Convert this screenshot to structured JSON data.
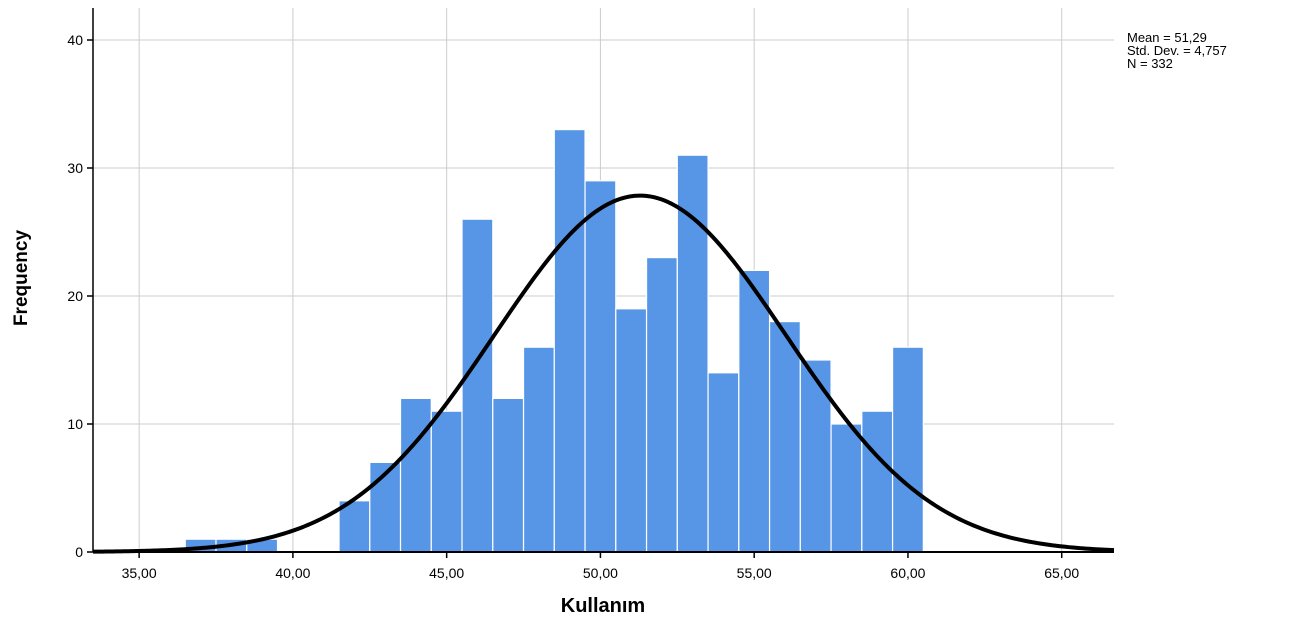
{
  "chart_data": {
    "type": "bar",
    "title": "",
    "xlabel": "Kullanım",
    "ylabel": "Frequency",
    "xlim": [
      33.5,
      66.7
    ],
    "ylim": [
      0,
      42.5
    ],
    "x_ticks": [
      {
        "value": 35,
        "label": "35,00"
      },
      {
        "value": 40,
        "label": "40,00"
      },
      {
        "value": 45,
        "label": "45,00"
      },
      {
        "value": 50,
        "label": "50,00"
      },
      {
        "value": 55,
        "label": "55,00"
      },
      {
        "value": 60,
        "label": "60,00"
      },
      {
        "value": 65,
        "label": "65,00"
      }
    ],
    "y_ticks": [
      {
        "value": 0,
        "label": "0"
      },
      {
        "value": 10,
        "label": "10"
      },
      {
        "value": 20,
        "label": "20"
      },
      {
        "value": 30,
        "label": "30"
      },
      {
        "value": 40,
        "label": "40"
      }
    ],
    "grid": true,
    "bin_width": 1,
    "bins": [
      {
        "start": 36.5,
        "count": 1
      },
      {
        "start": 37.5,
        "count": 1
      },
      {
        "start": 38.5,
        "count": 1
      },
      {
        "start": 41.5,
        "count": 4
      },
      {
        "start": 42.5,
        "count": 7
      },
      {
        "start": 43.5,
        "count": 12
      },
      {
        "start": 44.5,
        "count": 11
      },
      {
        "start": 45.5,
        "count": 26
      },
      {
        "start": 46.5,
        "count": 12
      },
      {
        "start": 47.5,
        "count": 16
      },
      {
        "start": 48.5,
        "count": 33
      },
      {
        "start": 49.5,
        "count": 29
      },
      {
        "start": 50.5,
        "count": 19
      },
      {
        "start": 51.5,
        "count": 23
      },
      {
        "start": 52.5,
        "count": 31
      },
      {
        "start": 53.5,
        "count": 14
      },
      {
        "start": 54.5,
        "count": 22
      },
      {
        "start": 55.5,
        "count": 18
      },
      {
        "start": 56.5,
        "count": 15
      },
      {
        "start": 57.5,
        "count": 10
      },
      {
        "start": 58.5,
        "count": 11
      },
      {
        "start": 59.5,
        "count": 16
      }
    ],
    "normal_curve": {
      "mean": 51.29,
      "sd": 4.757,
      "n": 332
    },
    "stats_text": [
      "Mean = 51,29",
      "Std. Dev. = 4,757",
      "N = 332"
    ],
    "legend_position": "top-right",
    "colors": {
      "bar_fill": "#5796e6",
      "bar_stroke": "#ffffff",
      "curve": "#000000",
      "grid": "#cccccc",
      "axis": "#000000"
    }
  }
}
